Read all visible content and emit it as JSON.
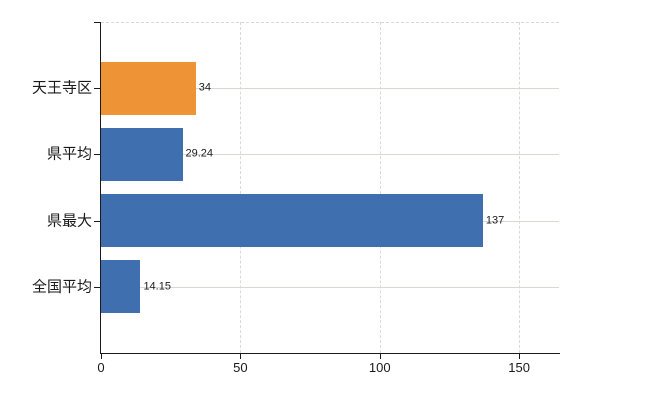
{
  "chart_data": {
    "type": "bar",
    "orientation": "horizontal",
    "title": "",
    "xlabel": "",
    "ylabel": "",
    "categories": [
      "天王寺区",
      "県平均",
      "県最大",
      "全国平均"
    ],
    "values": [
      34,
      29.24,
      137,
      14.15
    ],
    "value_labels": [
      "34",
      "29.24",
      "137",
      "14.15"
    ],
    "bar_colors": [
      "#EE9436",
      "#3F6FAE",
      "#3F6FAE",
      "#3F6FAE"
    ],
    "xlim": [
      0,
      164.3
    ],
    "x_ticks": [
      0,
      50,
      100,
      150
    ],
    "x_tick_labels": [
      "0",
      "50",
      "100",
      "150"
    ],
    "grid": true,
    "legend": false,
    "gridline_style": {
      "vertical": "dashed",
      "horizontal": "solid"
    },
    "colors": {
      "highlight": "#EE9436",
      "series_default": "#3F6FAE",
      "axis": "#1a1a1a",
      "grid_horizontal": "#d5dad3",
      "grid_vertical": "#d9d9d9",
      "text": "#1a1a1a",
      "background": "#ffffff"
    }
  }
}
